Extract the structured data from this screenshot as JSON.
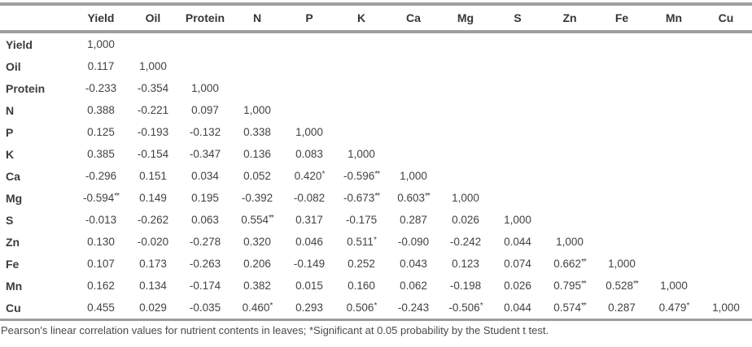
{
  "table": {
    "corner_label": "",
    "columns": [
      "Yield",
      "Oil",
      "Protein",
      "N",
      "P",
      "K",
      "Ca",
      "Mg",
      "S",
      "Zn",
      "Fe",
      "Mn",
      "Cu"
    ],
    "rows": [
      {
        "label": "Yield",
        "values": [
          "1,000"
        ]
      },
      {
        "label": "Oil",
        "values": [
          "0.117",
          "1,000"
        ]
      },
      {
        "label": "Protein",
        "values": [
          "-0.233",
          "-0.354",
          "1,000"
        ]
      },
      {
        "label": "N",
        "values": [
          "0.388",
          "-0.221",
          "0.097",
          "1,000"
        ]
      },
      {
        "label": "P",
        "values": [
          "0.125",
          "-0.193",
          "-0.132",
          "0.338",
          "1,000"
        ]
      },
      {
        "label": "K",
        "values": [
          "0.385",
          "-0.154",
          "-0.347",
          "0.136",
          "0.083",
          "1,000"
        ]
      },
      {
        "label": "Ca",
        "values": [
          "-0.296",
          "0.151",
          "0.034",
          "0.052",
          "0.420*",
          "-0.596**",
          "1,000"
        ]
      },
      {
        "label": "Mg",
        "values": [
          "-0.594**",
          "0.149",
          "0.195",
          "-0.392",
          "-0.082",
          "-0.673**",
          "0.603**",
          "1,000"
        ]
      },
      {
        "label": "S",
        "values": [
          "-0.013",
          "-0.262",
          "0.063",
          "0.554**",
          "0.317",
          "-0.175",
          "0.287",
          "0.026",
          "1,000"
        ]
      },
      {
        "label": "Zn",
        "values": [
          "0.130",
          "-0.020",
          "-0.278",
          "0.320",
          "0.046",
          "0.511*",
          "-0.090",
          "-0.242",
          "0.044",
          "1,000"
        ]
      },
      {
        "label": "Fe",
        "values": [
          "0.107",
          "0.173",
          "-0.263",
          "0.206",
          "-0.149",
          "0.252",
          "0.043",
          "0.123",
          "0.074",
          "0.662**",
          "1,000"
        ]
      },
      {
        "label": "Mn",
        "values": [
          "0.162",
          "0.134",
          "-0.174",
          "0.382",
          "0.015",
          "0.160",
          "0.062",
          "-0.198",
          "0.026",
          "0.795**",
          "0.528**",
          "1,000"
        ]
      },
      {
        "label": "Cu",
        "values": [
          "0.455",
          "0.029",
          "-0.035",
          "0.460*",
          "0.293",
          "0.506*",
          "-0.243",
          "-0.506*",
          "0.044",
          "0.574**",
          "0.287",
          "0.479*",
          "1,000"
        ]
      }
    ]
  },
  "footnote": "Pearson's linear correlation values for nutrient contents in leaves; *Significant at 0.05 probability by the Student t test.",
  "colors": {
    "border": "#9e9e9e",
    "header_text": "#363636",
    "cell_text": "#424242",
    "footnote_text": "#4a4a4a",
    "background": "#ffffff"
  }
}
